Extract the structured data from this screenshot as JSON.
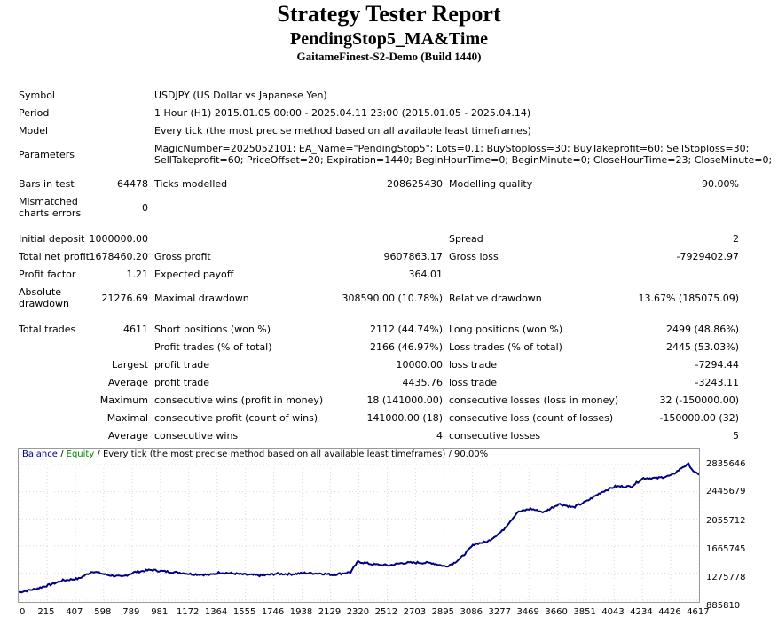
{
  "header": {
    "title": "Strategy Tester Report",
    "subtitle": "PendingStop5_MA&Time",
    "server": "GaitameFinest-S2-Demo (Build 1440)"
  },
  "info": {
    "symbol_label": "Symbol",
    "symbol_value": "USDJPY (US Dollar vs Japanese Yen)",
    "period_label": "Period",
    "period_value": "1 Hour (H1) 2015.01.05 00:00 - 2025.04.11 23:00 (2015.01.05 - 2025.04.14)",
    "model_label": "Model",
    "model_value": "Every tick (the most precise method based on all available least timeframes)",
    "parameters_label": "Parameters",
    "parameters_line1": "MagicNumber=2025052101; EA_Name=\"PendingStop5\"; Lots=0.1; BuyStoploss=30; BuyTakeprofit=60; SellStoploss=30;",
    "parameters_line2": "SellTakeprofit=60; PriceOffset=20; Expiration=1440; BeginHourTime=0; BeginMinute=0; CloseHourTime=23; CloseMinute=0;"
  },
  "stats": {
    "bars_label": "Bars in test",
    "bars_value": "64478",
    "ticks_label": "Ticks modelled",
    "ticks_value": "208625430",
    "quality_label": "Modelling quality",
    "quality_value": "90.00%",
    "mismatch_label": "Mismatched charts errors",
    "mismatch_value": "0",
    "deposit_label": "Initial deposit",
    "deposit_value": "1000000.00",
    "spread_label": "Spread",
    "spread_value": "2",
    "net_label": "Total net profit",
    "net_value": "1678460.20",
    "gross_profit_label": "Gross profit",
    "gross_profit_value": "9607863.17",
    "gross_loss_label": "Gross loss",
    "gross_loss_value": "-7929402.97",
    "pf_label": "Profit factor",
    "pf_value": "1.21",
    "payoff_label": "Expected payoff",
    "payoff_value": "364.01",
    "abs_dd_label": "Absolute drawdown",
    "abs_dd_value": "21276.69",
    "max_dd_label": "Maximal drawdown",
    "max_dd_value": "308590.00 (10.78%)",
    "rel_dd_label": "Relative drawdown",
    "rel_dd_value": "13.67% (185075.09)",
    "trades_label": "Total trades",
    "trades_value": "4611",
    "short_label": "Short positions (won %)",
    "short_value": "2112 (44.74%)",
    "long_label": "Long positions (won %)",
    "long_value": "2499 (48.86%)",
    "ptrades_label": "Profit trades (% of total)",
    "ptrades_value": "2166 (46.97%)",
    "ltrades_label": "Loss trades (% of total)",
    "ltrades_value": "2445 (53.03%)",
    "largest_label": "Largest",
    "largest_profit_label": "profit trade",
    "largest_profit_value": "10000.00",
    "largest_loss_label": "loss trade",
    "largest_loss_value": "-7294.44",
    "average_label": "Average",
    "average_profit_label": "profit trade",
    "average_profit_value": "4435.76",
    "average_loss_label": "loss trade",
    "average_loss_value": "-3243.11",
    "maximum_label": "Maximum",
    "max_wins_label": "consecutive wins (profit in money)",
    "max_wins_value": "18 (141000.00)",
    "max_losses_label": "consecutive losses (loss in money)",
    "max_losses_value": "32 (-150000.00)",
    "maximal_label": "Maximal",
    "maximal_profit_label": "consecutive profit (count of wins)",
    "maximal_profit_value": "141000.00 (18)",
    "maximal_loss_label": "consecutive loss (count of losses)",
    "maximal_loss_value": "-150000.00 (32)",
    "avg2_label": "Average",
    "avg_wins_label": "consecutive wins",
    "avg_wins_value": "4",
    "avg_losses_label": "consecutive losses",
    "avg_losses_value": "5"
  },
  "chart_data": {
    "type": "line",
    "legend_balance": "Balance",
    "legend_sep": " / ",
    "legend_equity": "Equity",
    "legend_rest": " / Every tick (the most precise method based on all available least timeframes) / 90.00%",
    "colors": {
      "balance": "#000080",
      "equity": "#008000"
    },
    "x_ticks": [
      "0",
      "215",
      "407",
      "598",
      "789",
      "981",
      "1172",
      "1364",
      "1555",
      "1746",
      "1938",
      "2129",
      "2320",
      "2512",
      "2703",
      "2895",
      "3086",
      "3277",
      "3469",
      "3660",
      "3851",
      "4043",
      "4234",
      "4426",
      "4617"
    ],
    "y_ticks": [
      "2835646",
      "2445679",
      "2055712",
      "1665745",
      "1275778",
      "885810"
    ],
    "xlim": [
      0,
      4611
    ],
    "ylim": [
      885810,
      2835646
    ],
    "series": [
      {
        "name": "Balance",
        "x": [
          0,
          120,
          215,
          300,
          407,
          500,
          598,
          700,
          789,
          900,
          981,
          1100,
          1172,
          1300,
          1364,
          1450,
          1555,
          1650,
          1746,
          1850,
          1938,
          2050,
          2129,
          2250,
          2300,
          2400,
          2512,
          2600,
          2703,
          2800,
          2895,
          2950,
          3000,
          3086,
          3180,
          3277,
          3380,
          3469,
          3560,
          3660,
          3760,
          3851,
          3950,
          4043,
          4150,
          4234,
          4330,
          4426,
          4500,
          4540,
          4580,
          4611
        ],
        "y": [
          1000000,
          1050000,
          1110000,
          1170000,
          1195000,
          1300000,
          1250000,
          1220000,
          1290000,
          1320000,
          1300000,
          1280000,
          1260000,
          1250000,
          1285000,
          1270000,
          1250000,
          1240000,
          1265000,
          1260000,
          1275000,
          1270000,
          1250000,
          1290000,
          1440000,
          1400000,
          1385000,
          1420000,
          1425000,
          1420000,
          1370000,
          1420000,
          1500000,
          1690000,
          1730000,
          1880000,
          2150000,
          2200000,
          2150000,
          2270000,
          2220000,
          2310000,
          2440000,
          2520000,
          2520000,
          2640000,
          2640000,
          2680000,
          2800000,
          2840000,
          2720000,
          2690000
        ]
      }
    ]
  }
}
